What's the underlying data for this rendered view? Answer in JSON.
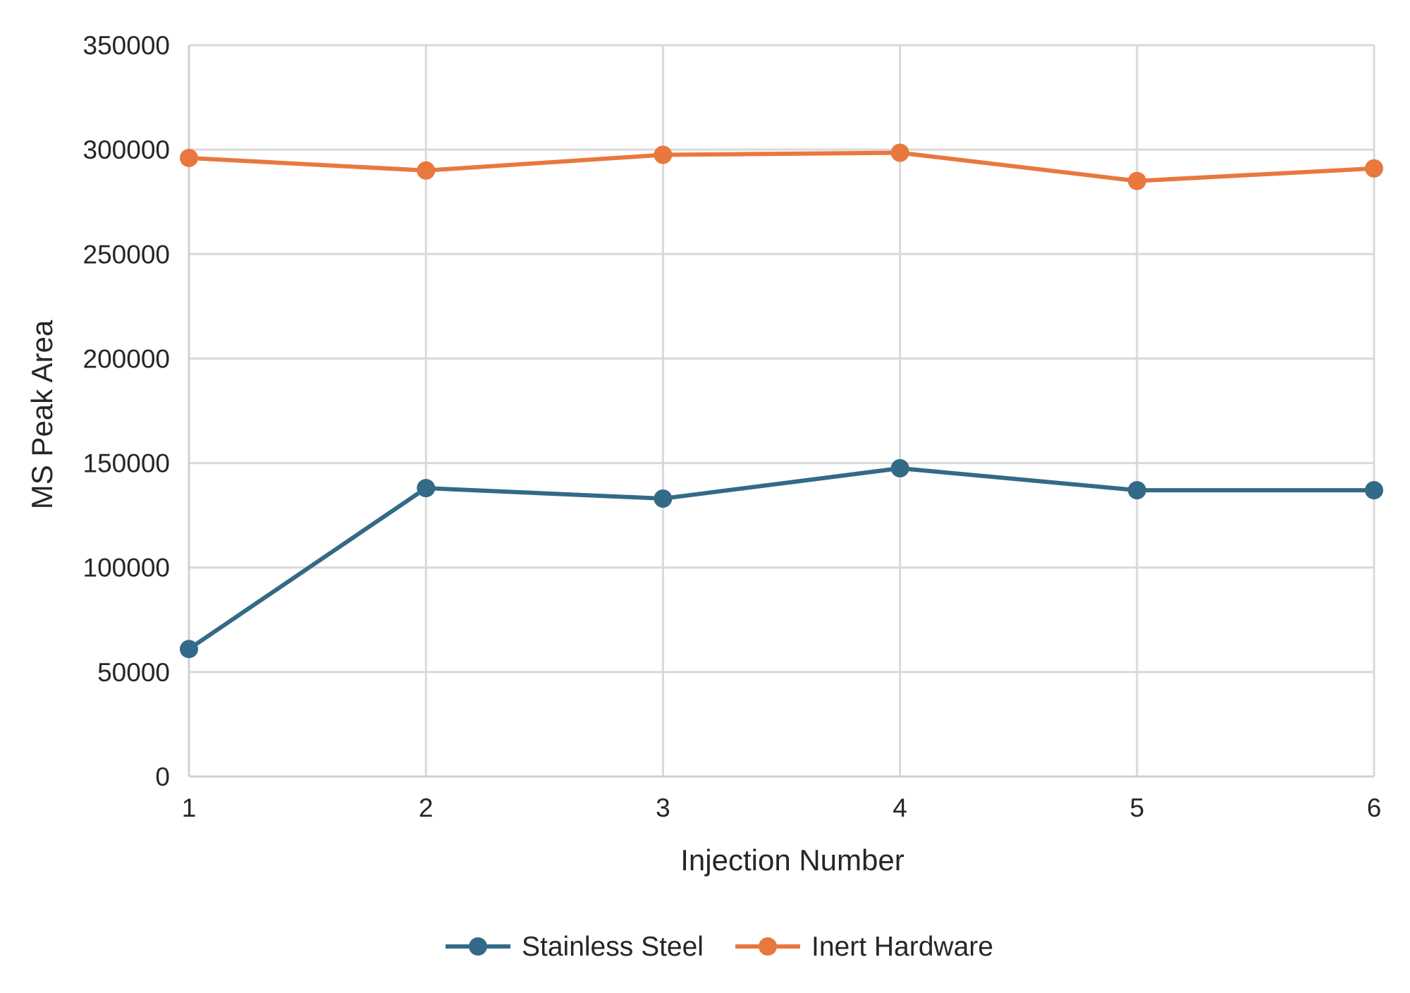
{
  "chart_data": {
    "type": "line",
    "x": [
      1,
      2,
      3,
      4,
      5,
      6
    ],
    "series": [
      {
        "name": "Stainless Steel",
        "color": "#336a87",
        "values": [
          61000,
          138000,
          133000,
          147500,
          137000,
          137000
        ]
      },
      {
        "name": "Inert Hardware",
        "color": "#e8783e",
        "values": [
          296000,
          290000,
          297500,
          298500,
          285000,
          291000
        ]
      }
    ],
    "xlabel": "Injection Number",
    "ylabel": "MS Peak Area",
    "ylim": [
      0,
      350000
    ],
    "yticks": [
      "0",
      "50000",
      "100000",
      "150000",
      "200000",
      "250000",
      "300000",
      "350000"
    ],
    "xticks": [
      "1",
      "2",
      "3",
      "4",
      "5",
      "6"
    ],
    "grid": true,
    "legend_position": "bottom"
  }
}
